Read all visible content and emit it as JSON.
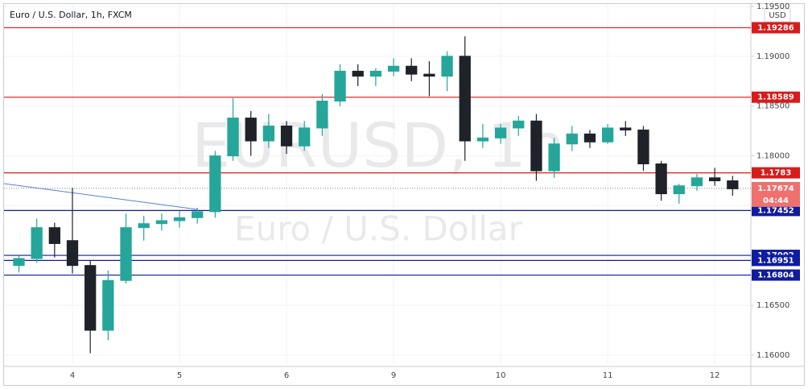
{
  "chart_data": {
    "type": "candlestick",
    "title": "Euro / U.S. Dollar, 1h, FXCM",
    "watermark": "EURUSD, 1h",
    "watermark_subtitle": "Euro / U.S. Dollar",
    "currency": "USD",
    "categories": [
      null,
      null,
      null,
      "4",
      null,
      null,
      null,
      null,
      null,
      "5",
      null,
      null,
      null,
      null,
      null,
      "6",
      null,
      null,
      null,
      null,
      null,
      "9",
      null,
      null,
      null,
      null,
      null,
      "10",
      null,
      null,
      null,
      null,
      null,
      "11",
      null,
      null,
      null,
      null,
      null,
      "12",
      null
    ],
    "open": [
      1.169,
      1.1697,
      1.1728,
      1.1715,
      1.169,
      1.1625,
      1.1675,
      1.1728,
      1.1732,
      1.1735,
      1.1738,
      1.1744,
      1.18,
      1.1838,
      1.1815,
      1.183,
      1.181,
      1.1828,
      1.1855,
      1.1885,
      1.188,
      1.1885,
      1.189,
      1.1882,
      1.188,
      1.19,
      1.1815,
      1.1818,
      1.1828,
      1.1835,
      1.1785,
      1.1812,
      1.1822,
      1.1814,
      1.1828,
      1.1826,
      1.1792,
      1.1762,
      1.177,
      1.1778,
      1.1775
    ],
    "high": [
      1.17,
      1.1737,
      1.1733,
      1.1768,
      1.1695,
      1.1685,
      1.1742,
      1.174,
      1.1742,
      1.1745,
      1.1748,
      1.1805,
      1.1858,
      1.1845,
      1.1842,
      1.1835,
      1.1835,
      1.1862,
      1.1892,
      1.1892,
      1.1888,
      1.1898,
      1.1898,
      1.1895,
      1.1905,
      1.192,
      1.1832,
      1.1832,
      1.184,
      1.1842,
      1.1818,
      1.183,
      1.1826,
      1.1832,
      1.1835,
      1.183,
      1.1795,
      1.1772,
      1.1782,
      1.1788,
      1.178
    ],
    "low": [
      1.1683,
      1.1693,
      1.1698,
      1.1682,
      1.1602,
      1.1615,
      1.1672,
      1.1715,
      1.1725,
      1.1728,
      1.1732,
      1.1738,
      1.1795,
      1.18,
      1.1808,
      1.1802,
      1.1805,
      1.182,
      1.185,
      1.187,
      1.187,
      1.188,
      1.1875,
      1.186,
      1.1865,
      1.1795,
      1.1808,
      1.1812,
      1.182,
      1.1775,
      1.1778,
      1.1805,
      1.1808,
      1.1812,
      1.182,
      1.1785,
      1.1755,
      1.1752,
      1.1765,
      1.177,
      1.176
    ],
    "close": [
      1.1697,
      1.1728,
      1.1712,
      1.169,
      1.1625,
      1.1675,
      1.1728,
      1.1732,
      1.1735,
      1.1738,
      1.1744,
      1.18,
      1.1838,
      1.1815,
      1.183,
      1.181,
      1.1828,
      1.1855,
      1.1885,
      1.188,
      1.1885,
      1.189,
      1.1882,
      1.188,
      1.19,
      1.1815,
      1.1818,
      1.1828,
      1.1835,
      1.1785,
      1.1812,
      1.1822,
      1.1814,
      1.1828,
      1.1826,
      1.1792,
      1.1762,
      1.177,
      1.1778,
      1.1775,
      1.1767
    ],
    "up_color": "#26a69a",
    "down_color": "#1f2329",
    "ylim": [
      1.15887,
      1.19524
    ],
    "yticks": [
      {
        "value": 1.16,
        "label": "1.16000"
      },
      {
        "value": 1.165,
        "label": "1.16500"
      },
      {
        "value": 1.17,
        "label": "1.17000"
      },
      {
        "value": 1.175,
        "label": "1.17500"
      },
      {
        "value": 1.18,
        "label": "1.18000"
      },
      {
        "value": 1.185,
        "label": "1.18500"
      },
      {
        "value": 1.19,
        "label": "1.19000"
      },
      {
        "value": 1.195,
        "label": "1.19500"
      }
    ],
    "grid": true,
    "levels": [
      {
        "value": 1.19286,
        "color": "#d81b1b"
      },
      {
        "value": 1.18589,
        "color": "#d81b1b"
      },
      {
        "value": 1.1783,
        "color": "#d81b1b"
      },
      {
        "value": 1.17452,
        "color": "#0f1ba0"
      },
      {
        "value": 1.17002,
        "color": "#0f1ba0"
      },
      {
        "value": 1.16951,
        "color": "#0f1ba0"
      },
      {
        "value": 1.16804,
        "color": "#0f1ba0"
      }
    ],
    "trendline": {
      "values": [
        1.17722,
        1.17463
      ],
      "color": "#5b7fd6"
    },
    "last_price": {
      "value": 1.17674,
      "countdown": "04:44",
      "color": "#ef706d"
    }
  }
}
